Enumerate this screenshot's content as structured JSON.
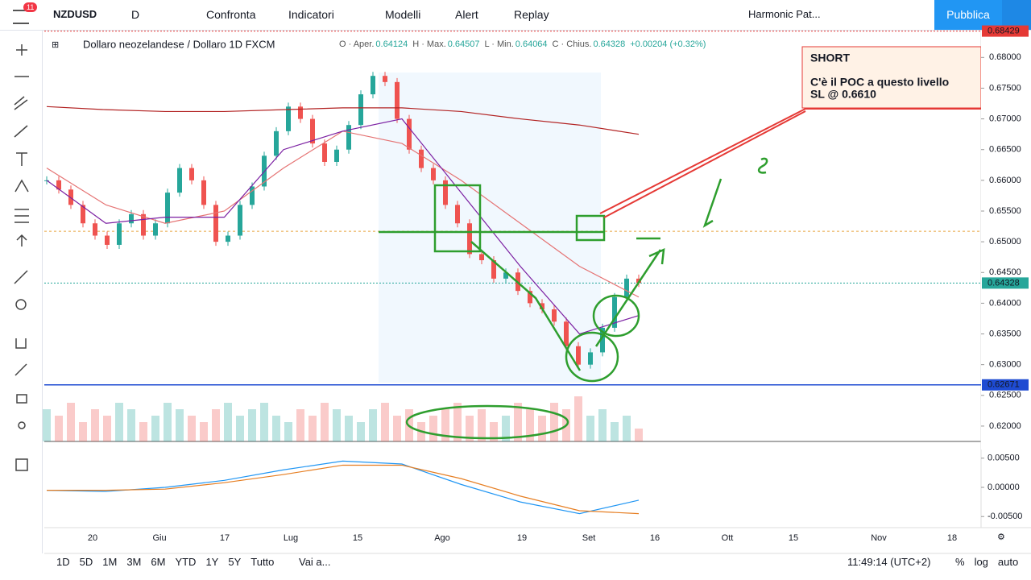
{
  "toolbar": {
    "notifications": "11",
    "symbol": "NZDUSD",
    "interval": "D",
    "items": [
      "Confronta",
      "Indicatori",
      "Modelli",
      "Alert",
      "Replay"
    ],
    "template": "Harmonic Pat...",
    "publish": "Pubblica"
  },
  "legend": {
    "title": "Dollaro neozelandese / Dollaro  1D  FXCM",
    "ohlc": [
      {
        "key": "O · Aper.",
        "value": 0.64124
      },
      {
        "key": "H · Max.",
        "value": 0.64507
      },
      {
        "key": "L · Min.",
        "value": 0.64064
      },
      {
        "key": "C · Chius.",
        "value": 0.64328
      }
    ],
    "change": "+0.00204 (+0.32%)"
  },
  "annotation": {
    "title": "SHORT",
    "lines": [
      "C'è il POC a questo livello",
      "SL @ 0.6610"
    ]
  },
  "chart_data": {
    "type": "candlestick",
    "values": [
      0.66,
      0.6585,
      0.656,
      0.653,
      0.651,
      0.6495,
      0.653,
      0.6545,
      0.651,
      0.653,
      0.658,
      0.662,
      0.66,
      0.656,
      0.65,
      0.651,
      0.656,
      0.659,
      0.664,
      0.668,
      0.672,
      0.67,
      0.666,
      0.663,
      0.665,
      0.669,
      0.674,
      0.677,
      0.676,
      0.67,
      0.665,
      0.662,
      0.66,
      0.656,
      0.653,
      0.648,
      0.647,
      0.644,
      0.645,
      0.642,
      0.64,
      0.639,
      0.637,
      0.633,
      0.63,
      0.632,
      0.636,
      0.641,
      0.644,
      0.6433
    ],
    "volume": [
      5,
      4,
      6,
      3,
      5,
      4,
      6,
      5,
      3,
      4,
      6,
      5,
      4,
      3,
      5,
      6,
      4,
      5,
      6,
      4,
      3,
      5,
      4,
      6,
      5,
      4,
      3,
      5,
      6,
      4,
      5,
      3,
      4,
      5,
      6,
      4,
      5,
      3,
      4,
      6,
      5,
      4,
      6,
      5,
      7,
      4,
      5,
      3,
      4,
      2
    ],
    "moving_averages": [
      {
        "color": "#b22222",
        "values": [
          0.672,
          0.6715,
          0.6712,
          0.6712,
          0.6715,
          0.6718,
          0.6718,
          0.6712,
          0.67,
          0.669,
          0.6675
        ]
      },
      {
        "color": "#e57373",
        "values": [
          0.662,
          0.656,
          0.653,
          0.655,
          0.662,
          0.668,
          0.666,
          0.66,
          0.653,
          0.646,
          0.641
        ]
      },
      {
        "color": "#7b1fa2",
        "values": [
          0.66,
          0.653,
          0.654,
          0.654,
          0.665,
          0.668,
          0.67,
          0.658,
          0.646,
          0.635,
          0.638
        ]
      }
    ],
    "ylim": [
      0.6175,
      0.6845
    ],
    "yticks": [
      {
        "value": 0.62,
        "label": "0.62000"
      },
      {
        "value": 0.625,
        "label": "0.62500"
      },
      {
        "value": 0.63,
        "label": "0.63000"
      },
      {
        "value": 0.635,
        "label": "0.63500"
      },
      {
        "value": 0.64,
        "label": "0.64000"
      },
      {
        "value": 0.645,
        "label": "0.64500"
      },
      {
        "value": 0.65,
        "label": "0.65000"
      },
      {
        "value": 0.655,
        "label": "0.65500"
      },
      {
        "value": 0.66,
        "label": "0.66000"
      },
      {
        "value": 0.665,
        "label": "0.66500"
      },
      {
        "value": 0.67,
        "label": "0.67000"
      },
      {
        "value": 0.675,
        "label": "0.67500"
      },
      {
        "value": 0.68,
        "label": "0.68000"
      }
    ],
    "price_tags": [
      {
        "value": 0.68429,
        "label": "0.68429",
        "color": "#e53935"
      },
      {
        "value": 0.64328,
        "label": "0.64328",
        "color": "#26a69a"
      },
      {
        "value": 0.62671,
        "label": "0.62671",
        "color": "#1e4bd2"
      }
    ],
    "poc_level": 0.6517,
    "x_labels": [
      "20",
      "Giu",
      "17",
      "Lug",
      "15",
      "Ago",
      "19",
      "Set",
      "16",
      "Ott",
      "15",
      "Nov",
      "18"
    ],
    "macd": {
      "ylim": [
        -0.0069,
        0.0069
      ],
      "yticks": [
        {
          "value": 0.005,
          "label": "0.00500"
        },
        {
          "value": 0,
          "label": "0.00000"
        },
        {
          "value": -0.005,
          "label": "-0.00500"
        }
      ],
      "series": [
        {
          "color": "#2196f3",
          "values": [
            -0.0005,
            -0.0007,
            0.0,
            0.0012,
            0.003,
            0.0045,
            0.004,
            0.0005,
            -0.0025,
            -0.0045,
            -0.0022
          ]
        },
        {
          "color": "#e67e22",
          "values": [
            -0.0005,
            -0.0005,
            -0.0003,
            0.0008,
            0.0022,
            0.0038,
            0.0038,
            0.0015,
            -0.0015,
            -0.004,
            -0.0045
          ]
        }
      ]
    }
  },
  "bottombar": {
    "ranges": [
      "1D",
      "5D",
      "1M",
      "3M",
      "6M",
      "YTD",
      "1Y",
      "5Y",
      "Tutto"
    ],
    "goto": "Vai a...",
    "clock": "11:49:14 (UTC+2)",
    "options": [
      "%",
      "log",
      "auto"
    ]
  }
}
